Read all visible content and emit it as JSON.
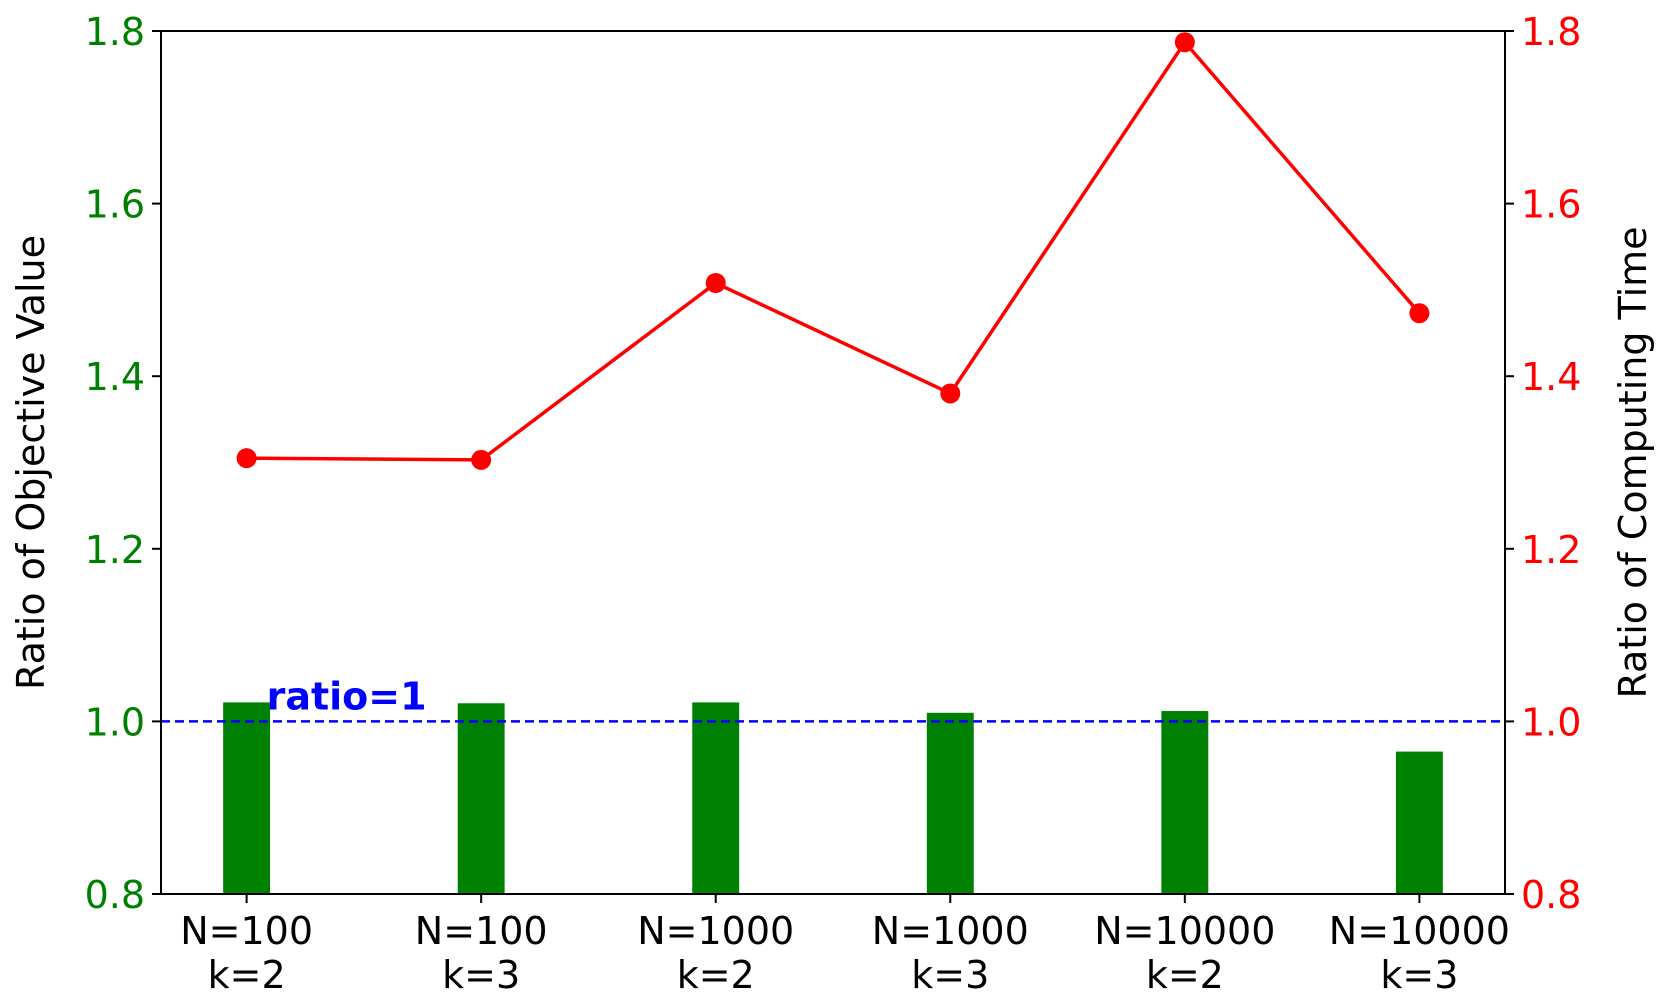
{
  "chart_data": {
    "type": "bar-line",
    "categories": [
      [
        "N=100",
        "k=2"
      ],
      [
        "N=100",
        "k=3"
      ],
      [
        "N=1000",
        "k=2"
      ],
      [
        "N=1000",
        "k=3"
      ],
      [
        "N=10000",
        "k=2"
      ],
      [
        "N=10000",
        "k=3"
      ]
    ],
    "ylabel": "Ratio of Objective Value",
    "y2label": "Ratio of Computing Time",
    "ylim": [
      0.8,
      1.8
    ],
    "yticks": [
      0.8,
      {
        "value": 1,
        "label": "1.0"
      },
      1.2,
      1.4,
      1.6,
      1.8
    ],
    "y2lim": [
      0.8,
      1.8
    ],
    "y2ticks": [
      0.8,
      {
        "value": 1,
        "label": "1.0"
      },
      1.2,
      1.4,
      1.6,
      1.8
    ],
    "ycolor": "green",
    "y2color": "red",
    "series": [
      {
        "type": "bar",
        "color": "green",
        "values": [
          1.022,
          1.021,
          1.022,
          1.01,
          1.012,
          0.965
        ]
      },
      {
        "type": "line",
        "color": "red",
        "axis": "y2",
        "values": [
          1.305,
          1.303,
          1.508,
          1.38,
          1.787,
          1.473
        ]
      }
    ],
    "hline": {
      "value": 1,
      "label": "ratio=1",
      "color": "blue"
    }
  }
}
